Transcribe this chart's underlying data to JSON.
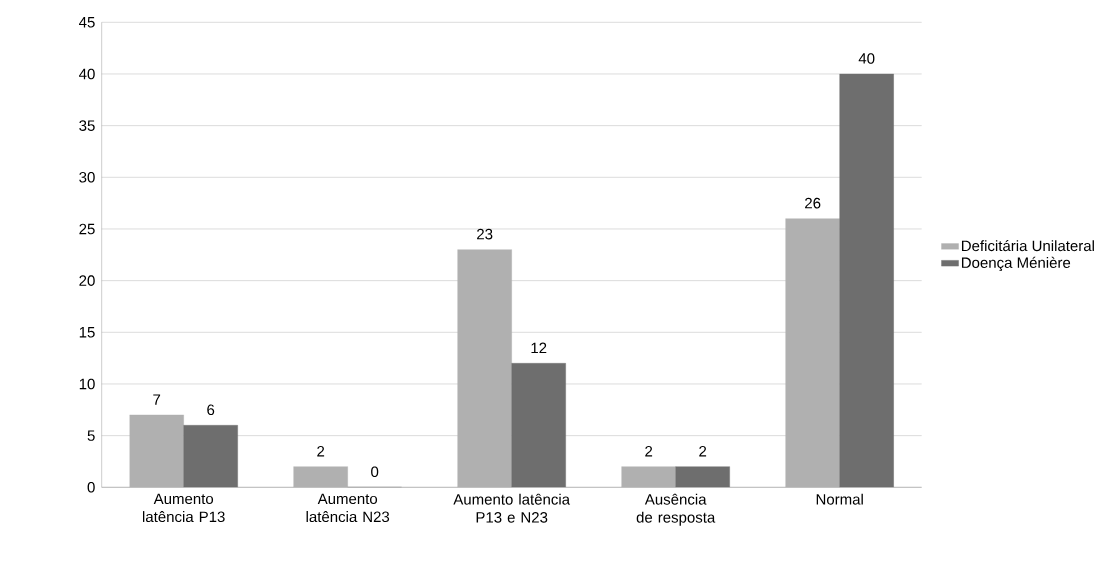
{
  "chart_data": {
    "type": "bar",
    "categories": [
      "Aumento latência P13",
      "Aumento latência N23",
      "Aumento latência P13 e N23",
      "Ausência de resposta",
      "Normal"
    ],
    "series": [
      {
        "name": "Deficitária Unilateral",
        "color": "#b0b0b0",
        "values": [
          7,
          2,
          23,
          2,
          26
        ]
      },
      {
        "name": "Doença Ménière",
        "color": "#6e6e6e",
        "values": [
          6,
          0,
          12,
          2,
          40
        ]
      }
    ],
    "ylim": [
      0,
      45
    ],
    "yticks": [
      0,
      5,
      10,
      15,
      20,
      25,
      30,
      35,
      40,
      45
    ],
    "grid": "y",
    "legend": "right",
    "data_labels": true
  }
}
